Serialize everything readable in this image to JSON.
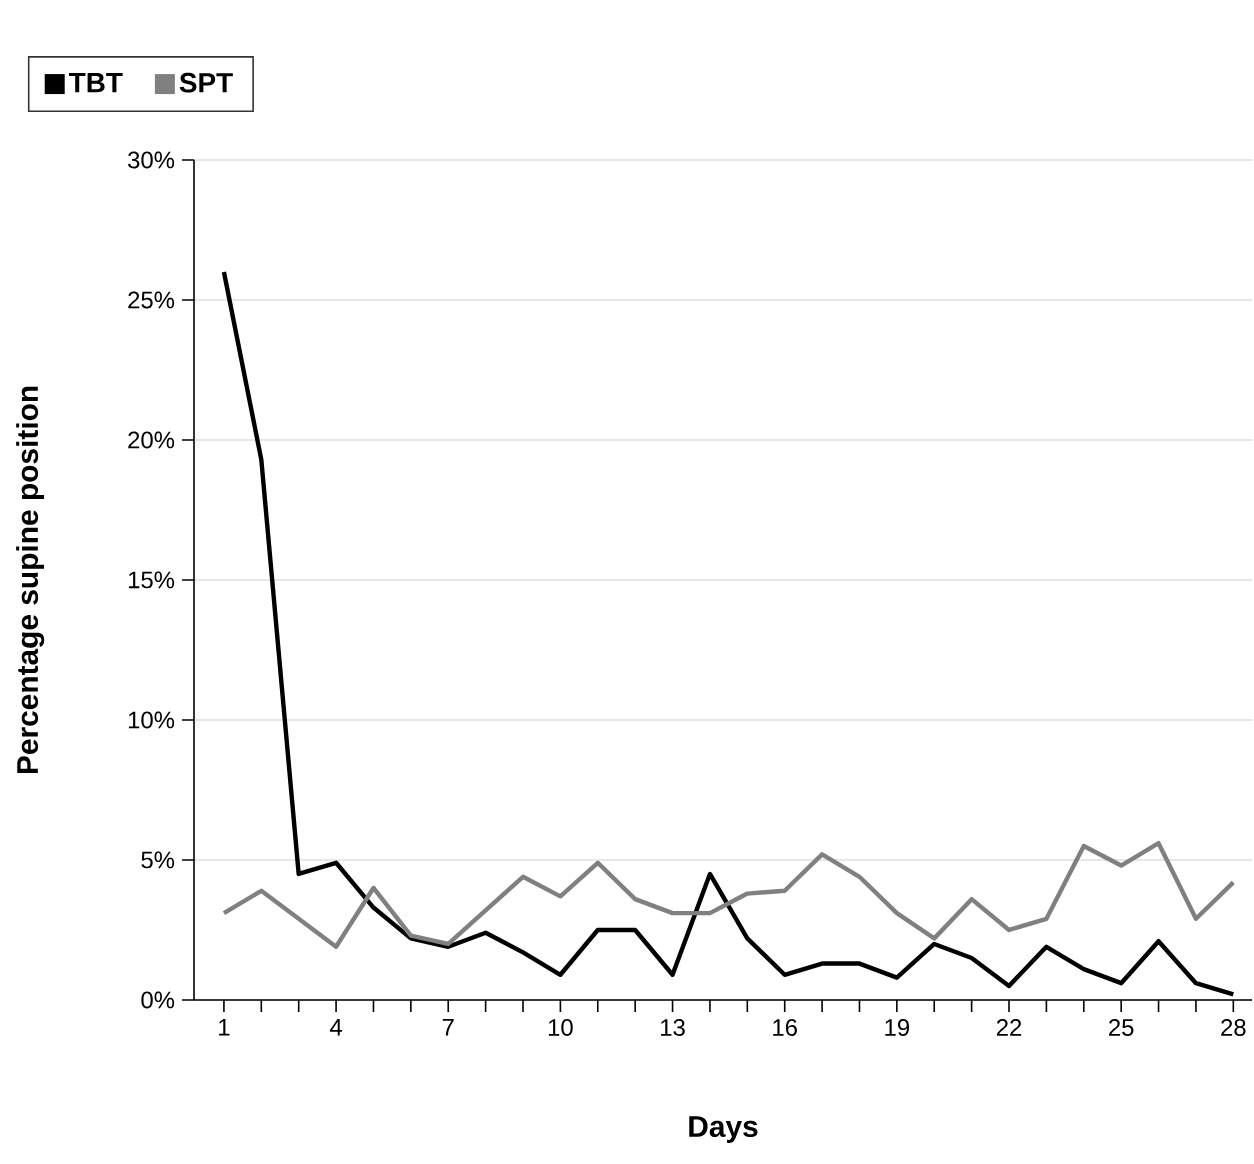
{
  "chart_data": {
    "type": "line",
    "xlabel": "Days",
    "ylabel": "Percentage supine position",
    "x": [
      1,
      2,
      3,
      4,
      5,
      6,
      7,
      8,
      9,
      10,
      11,
      12,
      13,
      14,
      15,
      16,
      17,
      18,
      19,
      20,
      21,
      22,
      23,
      24,
      25,
      26,
      27,
      28
    ],
    "series": [
      {
        "name": "TBT",
        "color": "#000000",
        "values": [
          26,
          19.3,
          4.5,
          4.9,
          3.3,
          2.2,
          1.9,
          2.4,
          1.7,
          0.9,
          2.5,
          2.5,
          0.9,
          4.5,
          2.2,
          0.9,
          1.3,
          1.3,
          0.8,
          2.0,
          1.5,
          0.5,
          1.9,
          1.1,
          0.6,
          2.1,
          0.6,
          0.2
        ]
      },
      {
        "name": "SPT",
        "color": "#808080",
        "values": [
          3.1,
          3.9,
          2.9,
          1.9,
          4.0,
          2.3,
          2.0,
          3.2,
          4.4,
          3.7,
          4.9,
          3.6,
          3.1,
          3.1,
          3.8,
          3.9,
          5.2,
          4.4,
          3.1,
          2.2,
          3.6,
          2.5,
          2.9,
          5.5,
          4.8,
          5.6,
          2.9,
          4.2
        ]
      }
    ],
    "xlim": [
      0.2,
      28.5
    ],
    "xticks": [
      1,
      {
        "value": 2,
        "label": null
      },
      {
        "value": 3,
        "label": null
      },
      4,
      {
        "value": 5,
        "label": null
      },
      {
        "value": 6,
        "label": null
      },
      7,
      {
        "value": 8,
        "label": null
      },
      {
        "value": 9,
        "label": null
      },
      10,
      {
        "value": 11,
        "label": null
      },
      {
        "value": 12,
        "label": null
      },
      13,
      {
        "value": 14,
        "label": null
      },
      {
        "value": 15,
        "label": null
      },
      16,
      {
        "value": 17,
        "label": null
      },
      {
        "value": 18,
        "label": null
      },
      19,
      {
        "value": 20,
        "label": null
      },
      {
        "value": 21,
        "label": null
      },
      22,
      {
        "value": 23,
        "label": null
      },
      {
        "value": 24,
        "label": null
      },
      25,
      {
        "value": 26,
        "label": null
      },
      {
        "value": 27,
        "label": null
      },
      28
    ],
    "ylim": [
      0,
      30
    ],
    "yticks": [
      {
        "value": 0,
        "label": "0%"
      },
      {
        "value": 5,
        "label": "5%"
      },
      {
        "value": 10,
        "label": "10%"
      },
      {
        "value": 15,
        "label": "15%"
      },
      {
        "value": 20,
        "label": "20%"
      },
      {
        "value": 25,
        "label": "25%"
      },
      {
        "value": 30,
        "label": "30%"
      }
    ],
    "grid": "y",
    "legend": "top left",
    "marker": "none",
    "line_style": "solid"
  }
}
